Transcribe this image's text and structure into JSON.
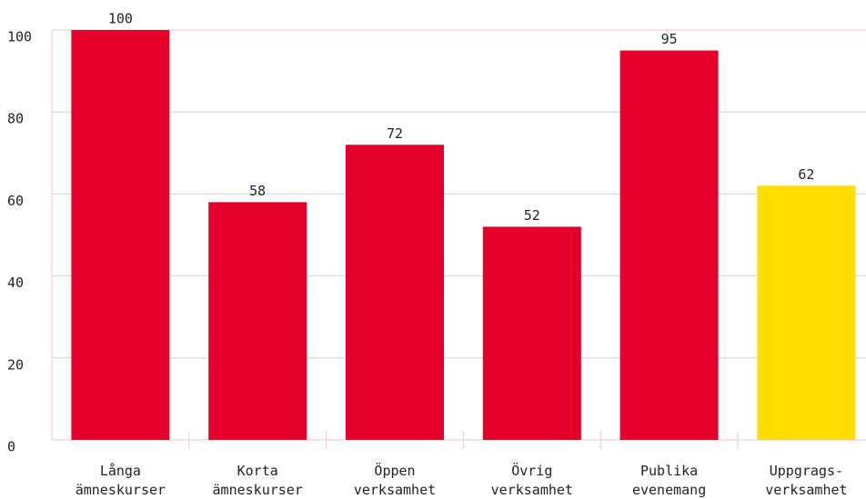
{
  "chart_data": {
    "type": "bar",
    "categories": [
      "Långa\nämneskurser",
      "Korta\nämneskurser",
      "Öppen\nverksamhet",
      "Övrig\nverksamhet",
      "Publika\nevenemang",
      "Uppgrags-\nverksamhet"
    ],
    "values": [
      100,
      58,
      72,
      52,
      95,
      62
    ],
    "colors": [
      "#e4002b",
      "#e4002b",
      "#e4002b",
      "#e4002b",
      "#e4002b",
      "#ffdd00"
    ],
    "ylim": [
      0,
      100
    ],
    "yticks": [
      0,
      20,
      40,
      60,
      80,
      100
    ],
    "grid": true
  }
}
